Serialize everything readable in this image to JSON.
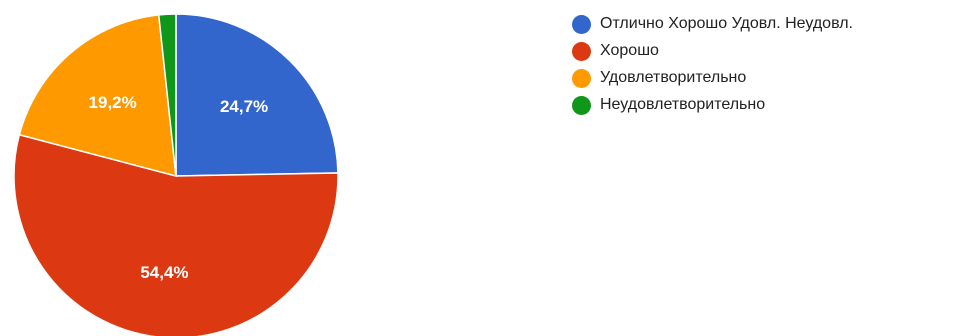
{
  "chart_data": {
    "type": "pie",
    "slices": [
      {
        "label": "Отлично Хорошо Удовл. Неудовл.",
        "value": 24.7,
        "value_label": "24,7%",
        "color": "#3366cc"
      },
      {
        "label": "Хорошо",
        "value": 54.4,
        "value_label": "54,4%",
        "color": "#dc3912"
      },
      {
        "label": "Удовлетворительно",
        "value": 19.2,
        "value_label": "19,2%",
        "color": "#ff9900"
      },
      {
        "label": "Неудовлетворительно",
        "value": 1.7,
        "value_label": "",
        "color": "#109618"
      }
    ],
    "start_angle_deg": 0,
    "direction": "clockwise",
    "legend_position": "right",
    "background": "#ffffff"
  }
}
